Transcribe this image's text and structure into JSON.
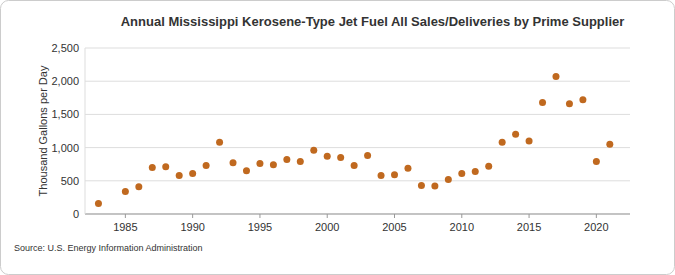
{
  "chart_data": {
    "type": "scatter",
    "title": "Annual Mississippi Kerosene-Type Jet Fuel All Sales/Deliveries by Prime Supplier",
    "y_label": "Thousand Gallons per Day",
    "source": "Source: U.S. Energy Information Administration",
    "x": [
      1983,
      1985,
      1986,
      1987,
      1988,
      1989,
      1990,
      1991,
      1992,
      1993,
      1994,
      1995,
      1996,
      1997,
      1998,
      1999,
      2000,
      2001,
      2002,
      2003,
      2004,
      2005,
      2006,
      2007,
      2008,
      2009,
      2010,
      2011,
      2012,
      2013,
      2014,
      2015,
      2016,
      2017,
      2018,
      2019,
      2020,
      2021
    ],
    "values": [
      160,
      340,
      410,
      700,
      710,
      580,
      610,
      730,
      1080,
      770,
      650,
      760,
      740,
      820,
      790,
      960,
      870,
      850,
      730,
      880,
      580,
      590,
      690,
      430,
      420,
      520,
      610,
      640,
      720,
      1080,
      1200,
      1100,
      1680,
      2070,
      1660,
      1720,
      790,
      1050
    ],
    "color": "#c0691f",
    "marker": "circle",
    "xlim": [
      1982,
      2022.5
    ],
    "xticks": [
      1985,
      1990,
      1995,
      2000,
      2005,
      2010,
      2015,
      2020
    ],
    "ylim": [
      0,
      2500
    ],
    "yticks": [
      0,
      500,
      {
        "value": 1000,
        "label": "1,000"
      },
      {
        "value": 1500,
        "label": "1,500"
      },
      {
        "value": 2000,
        "label": "2,000"
      },
      {
        "value": 2500,
        "label": "2,500"
      }
    ],
    "grid": true
  }
}
